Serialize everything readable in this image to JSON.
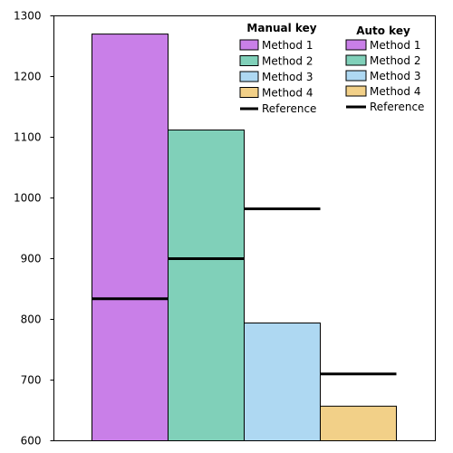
{
  "chart_data": {
    "type": "bar",
    "title": "",
    "xlabel": "",
    "ylabel": "",
    "ylim": [
      600,
      1300
    ],
    "yticks": [
      600,
      700,
      800,
      900,
      1000,
      1100,
      1200,
      1300
    ],
    "x_tick_labels": "none",
    "grid": false,
    "categories": [
      "Method 1",
      "Method 2",
      "Method 3",
      "Method 4"
    ],
    "series": [
      {
        "name": "Method",
        "values": [
          1270,
          1112,
          794,
          657
        ],
        "colors": [
          "#c97fe8",
          "#80d0b9",
          "#aed8f2",
          "#f2d088"
        ]
      },
      {
        "name": "Reference",
        "type": "line-segment",
        "values": [
          834,
          900,
          982,
          710
        ],
        "color": "#000000"
      }
    ],
    "legends": [
      {
        "title": "Manual key",
        "placement": "top-center",
        "entries": [
          {
            "label": "Method 1",
            "color": "#c97fe8",
            "kind": "patch"
          },
          {
            "label": "Method 2",
            "color": "#80d0b9",
            "kind": "patch"
          },
          {
            "label": "Method 3",
            "color": "#aed8f2",
            "kind": "patch"
          },
          {
            "label": "Method 4",
            "color": "#f2d088",
            "kind": "patch"
          },
          {
            "label": "Reference",
            "color": "#000000",
            "kind": "line"
          }
        ]
      },
      {
        "title": "Auto key",
        "placement": "top-right",
        "entries": [
          {
            "label": "Method 1",
            "color": "#c97fe8",
            "kind": "patch"
          },
          {
            "label": "Method 2",
            "color": "#80d0b9",
            "kind": "patch"
          },
          {
            "label": "Method 3",
            "color": "#aed8f2",
            "kind": "patch"
          },
          {
            "label": "Method 4",
            "color": "#f2d088",
            "kind": "patch"
          },
          {
            "label": "Reference",
            "color": "#000000",
            "kind": "line"
          }
        ]
      }
    ]
  }
}
